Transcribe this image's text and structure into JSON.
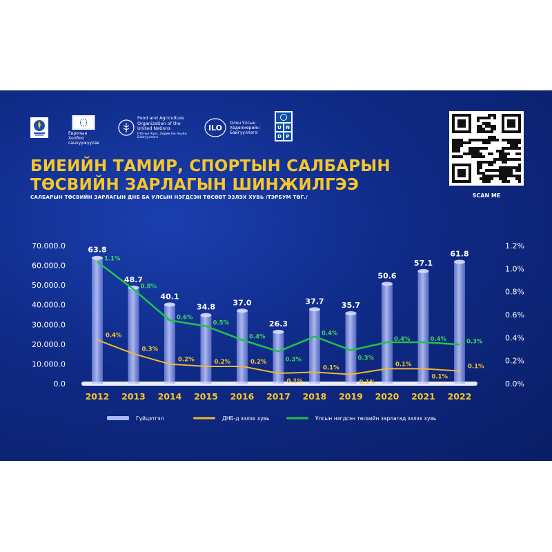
{
  "header": {
    "logos": [
      {
        "name": "mongolia-emblem",
        "text": ""
      },
      {
        "name": "eu-flag",
        "text": "Европын Холбоо санхүүжүүлэв"
      },
      {
        "name": "fao-logo",
        "text": "Food and Agriculture Organization of the United Nations",
        "subtext": "НҮБ-ын Хүнс, Хөдөө Аж Ахуйн Байгууллага"
      },
      {
        "name": "ilo-logo",
        "text": "Олон Улсын Хөдөлмөрийн Байгууллага"
      },
      {
        "name": "undp-logo",
        "text": "UNDP"
      }
    ],
    "title_line1": "БИЕИЙН ТАМИР, СПОРТЫН САЛБАРЫН",
    "title_line2": "ТӨСВИЙН ЗАРЛАГЫН ШИНЖИЛГЭЭ",
    "subtitle": "САЛБАРЫН ТӨСВИЙН ЗАРЛАГЫН ДНБ БА УЛСЫН НЭГДСЭН ТӨСӨВТ ЭЗЛЭХ ХУВЬ /ТЭРБУМ ТӨГ./",
    "scan_label": "SCAN ME"
  },
  "colors": {
    "title": "#f6c62b",
    "background": "#0f2a86",
    "bar": "#aab6ff",
    "gdp_line": "#f2b631",
    "budget_line": "#1ec24a",
    "year_label": "#f6c62b"
  },
  "chart_data": {
    "type": "bar+line",
    "categories": [
      "2012",
      "2013",
      "2014",
      "2015",
      "2016",
      "2017",
      "2018",
      "2019",
      "2020",
      "2021",
      "2022"
    ],
    "left_axis": {
      "ylim": [
        0,
        70000
      ],
      "ticks": [
        "0.0",
        "10.000.0",
        "20.000.0",
        "30.000.0",
        "40.000.0",
        "50.000.0",
        "60.000.0",
        "70.000.0"
      ]
    },
    "right_axis": {
      "ylim": [
        0,
        1.2
      ],
      "ticks": [
        "0.0%",
        "0.2%",
        "0.4%",
        "0.6%",
        "0.8%",
        "1.0%",
        "1.2%"
      ]
    },
    "series": [
      {
        "name": "Гүйцэтгэл",
        "type": "bar",
        "axis": "left",
        "values": [
          63800,
          48700,
          40100,
          34800,
          37000,
          26300,
          37700,
          35700,
          50600,
          57100,
          61800
        ],
        "labels": [
          "63.8",
          "48.7",
          "40.1",
          "34.8",
          "37.0",
          "26.3",
          "37.7",
          "35.7",
          "50.6",
          "57.1",
          "61.8"
        ]
      },
      {
        "name": "ДНБ-д эзлэх хувь",
        "type": "line",
        "axis": "right",
        "values": [
          0.38,
          0.26,
          0.17,
          0.15,
          0.15,
          0.09,
          0.1,
          0.08,
          0.13,
          0.13,
          0.11
        ],
        "labels": [
          "0.4%",
          "0.3%",
          "0.2%",
          "0.2%",
          "0.2%",
          "0.1%",
          "0.1%",
          "0.1%",
          "0.1%",
          "0.1%",
          "0.1%"
        ]
      },
      {
        "name": "Улсын нэгдсэн төсвийн зарлагад эзлэх хувь",
        "type": "line",
        "axis": "right",
        "values": [
          1.06,
          0.82,
          0.55,
          0.5,
          0.38,
          0.28,
          0.41,
          0.29,
          0.36,
          0.36,
          0.34
        ],
        "labels": [
          "1.1%",
          "0.8%",
          "0.6%",
          "0.5%",
          "0.4%",
          "0.3%",
          "0.4%",
          "0.3%",
          "0.4%",
          "0.4%",
          "0.3%"
        ]
      }
    ],
    "legend": "bottom",
    "grid": false
  }
}
